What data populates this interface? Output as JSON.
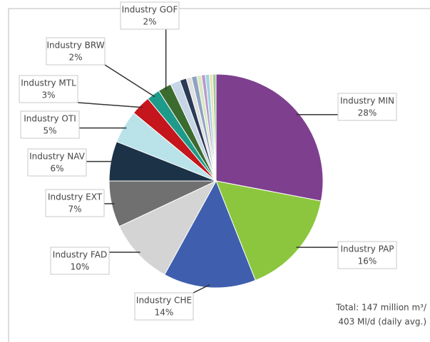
{
  "chart_data": {
    "type": "pie",
    "categories": [
      "Industry MIN",
      "Industry PAP",
      "Industry CHE",
      "Industry FAD",
      "Industry EXT",
      "Industry NAV",
      "Industry OTI",
      "Industry MTL",
      "Industry BRW",
      "Industry GOF",
      null,
      null,
      null,
      null,
      null,
      null,
      null,
      null,
      null
    ],
    "values": [
      28,
      16,
      14,
      10,
      7,
      6,
      5,
      3,
      2,
      2,
      1.5,
      1,
      0.8,
      0.8,
      0.7,
      0.6,
      0.6,
      0.5,
      0.5
    ],
    "value_labels": [
      "28%",
      "16%",
      "14%",
      "10%",
      "7%",
      "6%",
      "5%",
      "3%",
      "2%",
      "2%",
      null,
      null,
      null,
      null,
      null,
      null,
      null,
      null,
      null
    ],
    "colors": [
      "#7e3f8f",
      "#8cc63f",
      "#3f5fae",
      "#d4d4d4",
      "#707070",
      "#1c3247",
      "#b9e3e8",
      "#c4161c",
      "#1d9a8a",
      "#3c6b2f",
      "#c7d6e6",
      "#2b3a55",
      "#e0e0e0",
      "#8fa3c0",
      "#d9e8c4",
      "#b89ccc",
      "#9fd4e0",
      "#f0e0b0",
      "#a0c8a0"
    ],
    "annotations": [
      "Total: 147 million m³/",
      "403 Ml/d (daily avg.)"
    ]
  }
}
